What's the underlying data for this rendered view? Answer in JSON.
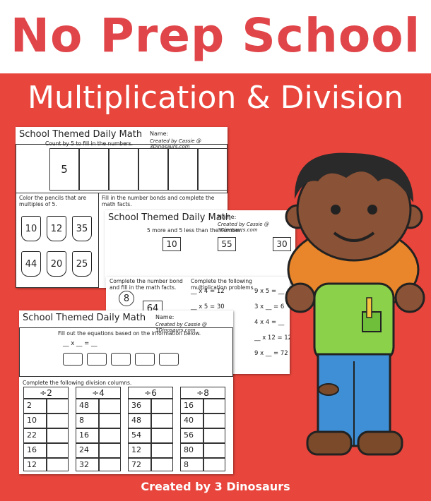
{
  "header": {
    "title": "No Prep School",
    "subtitle": "Multiplication & Division"
  },
  "worksheets": [
    {
      "title": "School Themed Daily Math",
      "name_label": "Name:",
      "credit": "Created by Cassie @ 3Dinosaurs.com",
      "instructions": [
        "Count by 5 to fill in the numbers.",
        "Color the pencils that are multiples of 5.",
        "Fill in the number bonds and complete the math facts."
      ],
      "start": "5",
      "pencils": [
        "10",
        "12",
        "35",
        "44",
        "20",
        "25"
      ]
    },
    {
      "title": "School Themed Daily Math",
      "name_label": "Name:",
      "credit": "Created by Cassie @ 3Dinosaurs.com",
      "instructions": [
        "5 more and 5 less than the number."
      ],
      "numbers": [
        "10",
        "55",
        "30"
      ]
    },
    {
      "instructions": [
        "Complete the number bond and fill in the math facts.",
        "Complete the following multiplication problems."
      ],
      "bond": [
        "8",
        "64"
      ],
      "problems": [
        "__ x 4 = 12",
        "__ x 5 = 30",
        "9 x 5 = __",
        "3 x __ = 6",
        "4 x 4 = __",
        "__ x 12 = 12",
        "9 x __ = 72"
      ]
    },
    {
      "title": "School Themed Daily Math",
      "name_label": "Name:",
      "credit": "Created by Cassie @ 3Dinosaurs.com",
      "instructions": [
        "Fill out the equations based on the information below.",
        "Complete the following division columns."
      ],
      "equation": "__ x __ = __",
      "columns": [
        {
          "head": "÷2",
          "values": [
            "2",
            "10",
            "22",
            "16",
            "12"
          ]
        },
        {
          "head": "÷4",
          "values": [
            "48",
            "8",
            "16",
            "24",
            "32"
          ]
        },
        {
          "head": "÷6",
          "values": [
            "36",
            "48",
            "54",
            "12",
            "72"
          ]
        },
        {
          "head": "÷8",
          "values": [
            "16",
            "40",
            "56",
            "80",
            "8"
          ]
        }
      ]
    }
  ],
  "footer": "Created by 3 Dinosaurs"
}
